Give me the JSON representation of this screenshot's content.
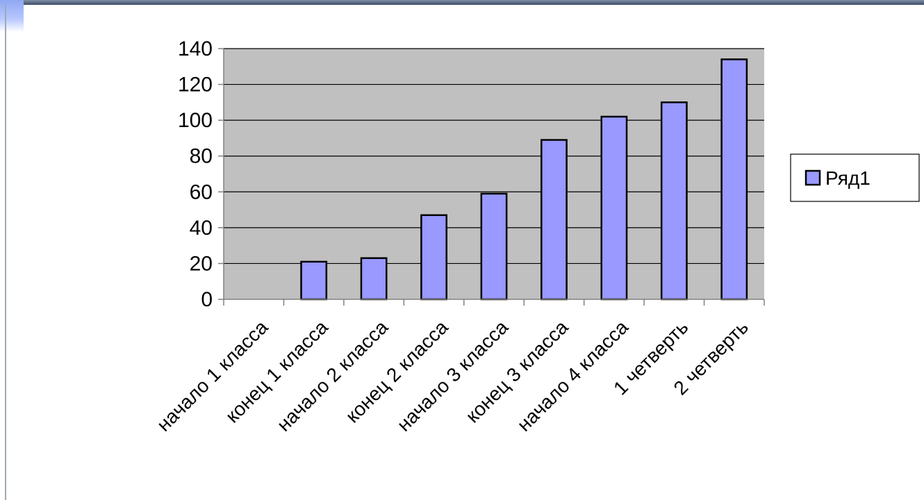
{
  "chart_data": {
    "type": "bar",
    "categories": [
      "начало 1 класса",
      "конец 1 класса",
      "начало 2 класса",
      "конец 2 класса",
      "начало 3 класса",
      "конец 3 класса",
      "начало 4 класса",
      "1 четверть",
      "2 четверть"
    ],
    "series": [
      {
        "name": "Ряд1",
        "values": [
          0,
          21,
          23,
          47,
          59,
          89,
          102,
          110,
          134
        ]
      }
    ],
    "ylim": [
      0,
      140
    ],
    "yticks": [
      0,
      20,
      40,
      60,
      80,
      100,
      120,
      140
    ],
    "grid": true,
    "legend_position": "right",
    "colors": {
      "bar": "#9999ff",
      "plot_background": "#c0c0c0",
      "gridline": "#000000"
    }
  }
}
